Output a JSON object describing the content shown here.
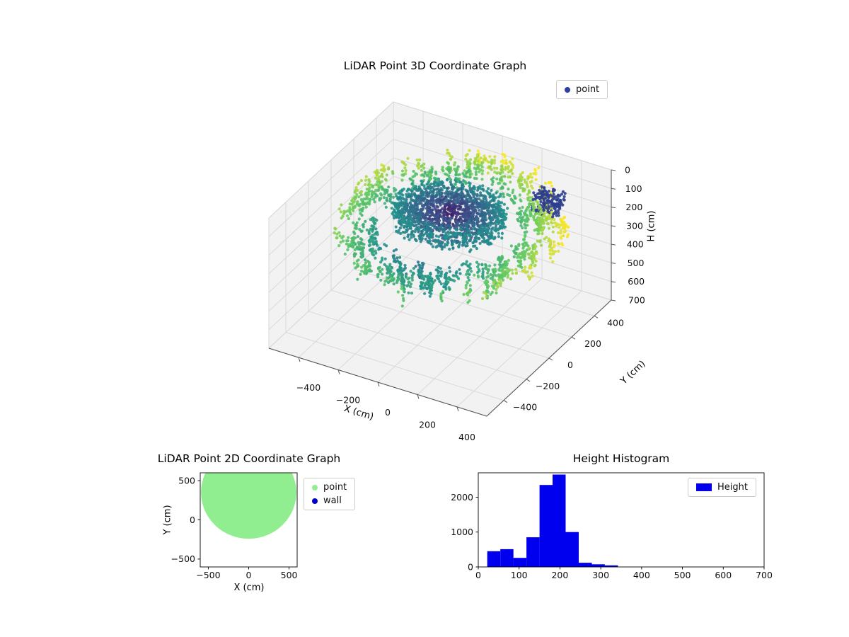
{
  "chart_data": [
    {
      "id": "scatter3d",
      "type": "scatter3d",
      "title": "LiDAR Point 3D Coordinate Graph",
      "xlabel": "X (cm)",
      "ylabel": "Y (cm)",
      "zlabel": "H (cm)",
      "xlim": [
        -550,
        550
      ],
      "ylim": [
        -550,
        550
      ],
      "zlim": [
        0,
        700
      ],
      "zaxis_inverted": true,
      "xticks": [
        -400,
        -200,
        0,
        200,
        400
      ],
      "yticks": [
        -400,
        -200,
        0,
        200,
        400
      ],
      "zticks": [
        0,
        100,
        200,
        300,
        400,
        500,
        600,
        700
      ],
      "legend": [
        {
          "label": "point",
          "color": "#2f3e9e"
        }
      ],
      "colormap": "viridis",
      "description": "Dense LiDAR point cloud: yellow-green outer ring (room walls) around a dark purple central mass, heights mostly 50-350 cm",
      "cloud": {
        "seed": 7,
        "ring_columns": 270,
        "ring_cx": 30,
        "ring_radius": [
          330,
          540
        ],
        "front_pinch": 120,
        "ring_h_mid": 165,
        "ring_h_amp": 80,
        "ring_h_jitter": 40,
        "column_pts": [
          3,
          9
        ],
        "column_step": [
          7,
          14
        ],
        "xy_jitter": 24,
        "disk_points": 1700,
        "disk_cx": -30,
        "disk_cy": 140,
        "disk_rx": 260,
        "disk_ry_scale": 0.9,
        "disk_h": [
          150,
          250
        ],
        "clusters": [
          {
            "x": 360,
            "y": 330,
            "h": 110,
            "sx": 130,
            "sy": 120,
            "sh": 90,
            "n": 150,
            "color": "#2e3e8e"
          }
        ],
        "marker_px": 2.1,
        "color_radial_weight": 0.85,
        "color_height_weight": 0.15,
        "color_rmax": 520,
        "color_h0": 40,
        "color_hspan": 310
      }
    },
    {
      "id": "scatter2d",
      "type": "scatter",
      "title": "LiDAR Point 2D Coordinate Graph",
      "xlabel": "X (cm)",
      "ylabel": "Y (cm)",
      "xlim": [
        -600,
        600
      ],
      "ylim": [
        -600,
        600
      ],
      "xticks": [
        -500,
        0,
        500
      ],
      "yticks": [
        -500,
        0,
        500
      ],
      "legend": [
        {
          "label": "point",
          "color": "#90ee90"
        },
        {
          "label": "wall",
          "color": "#0000cd"
        }
      ],
      "blob": {
        "cx": 0,
        "cy": 350,
        "r": 590,
        "color": "#90ee90"
      }
    },
    {
      "id": "histogram",
      "type": "bar",
      "title": "Height Histogram",
      "xlabel": "",
      "ylabel": "",
      "xlim": [
        0,
        700
      ],
      "ylim": [
        0,
        2700
      ],
      "xticks": [
        0,
        100,
        200,
        300,
        400,
        500,
        600,
        700
      ],
      "yticks": [
        0,
        1000,
        2000
      ],
      "legend": [
        {
          "label": "Height",
          "color": "#0000ee"
        }
      ],
      "bar_color": "#0000ee",
      "bin_edges": [
        22,
        54,
        86,
        118,
        150,
        182,
        214,
        246,
        278,
        310,
        342
      ],
      "counts": [
        450,
        510,
        260,
        850,
        2350,
        2650,
        1000,
        120,
        75,
        45
      ]
    }
  ]
}
